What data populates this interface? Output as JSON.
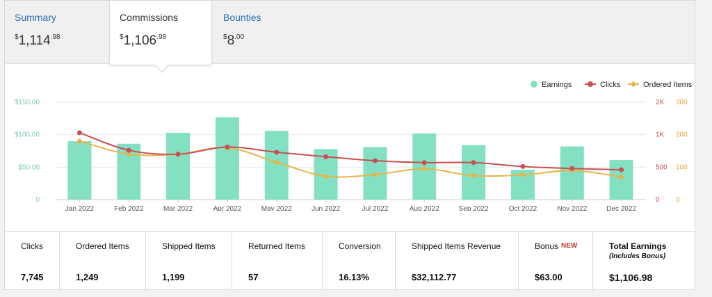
{
  "tabs": {
    "summary": {
      "label": "Summary",
      "currency": "$",
      "whole": "1,114",
      "cents": ".98"
    },
    "commissions": {
      "label": "Commissions",
      "currency": "$",
      "whole": "1,106",
      "cents": ".98"
    },
    "bounties": {
      "label": "Bounties",
      "currency": "$",
      "whole": "8",
      "cents": ".00"
    }
  },
  "legend": {
    "earnings": "Earnings",
    "clicks": "Clicks",
    "ordered": "Ordered Items"
  },
  "colors": {
    "earnings": "#84e0c3",
    "clicks": "#c75050",
    "ordered": "#e8b44a",
    "link": "#2a6eb3"
  },
  "chart_data": {
    "type": "bar",
    "categories": [
      "Jan 2022",
      "Feb 2022",
      "Mar 2022",
      "Apr 2022",
      "May 2022",
      "Jun 2022",
      "Jul 2022",
      "Aug 2022",
      "Sep 2022",
      "Oct 2022",
      "Nov 2022",
      "Dec 2022"
    ],
    "series": [
      {
        "name": "Earnings",
        "type": "bar",
        "axis": "left",
        "values": [
          90,
          86,
          103,
          127,
          106,
          78,
          81,
          102,
          84,
          46,
          82,
          61
        ]
      },
      {
        "name": "Clicks",
        "type": "line",
        "axis": "right1",
        "values": [
          1060,
          760,
          700,
          810,
          730,
          660,
          600,
          570,
          570,
          510,
          480,
          460
        ]
      },
      {
        "name": "Ordered Items",
        "type": "line",
        "axis": "right2",
        "values": [
          180,
          140,
          140,
          160,
          115,
          72,
          77,
          95,
          74,
          76,
          90,
          70
        ]
      }
    ],
    "left_axis": {
      "ticks": [
        "0",
        "$50.00",
        "$100.00",
        "$150.00"
      ],
      "ylim": [
        0,
        150
      ]
    },
    "right1_axis": {
      "ticks": [
        "0",
        "500",
        "1K",
        "2K"
      ]
    },
    "right2_axis": {
      "ticks": [
        "0",
        "100",
        "200",
        "300"
      ],
      "ylim": [
        0,
        300
      ]
    },
    "grid": true
  },
  "stats": [
    {
      "label": "Clicks",
      "value": "7,745"
    },
    {
      "label": "Ordered Items",
      "value": "1,249"
    },
    {
      "label": "Shipped Items",
      "value": "1,199"
    },
    {
      "label": "Returned Items",
      "value": "57"
    },
    {
      "label": "Conversion",
      "value": "16.13%"
    },
    {
      "label": "Shipped Items Revenue",
      "value": "$32,112.77"
    },
    {
      "label": "Bonus",
      "badge": "NEW",
      "value": "$63.00"
    },
    {
      "label": "Total Earnings",
      "sub": "(Includes Bonus)",
      "value": "$1,106.98"
    }
  ]
}
